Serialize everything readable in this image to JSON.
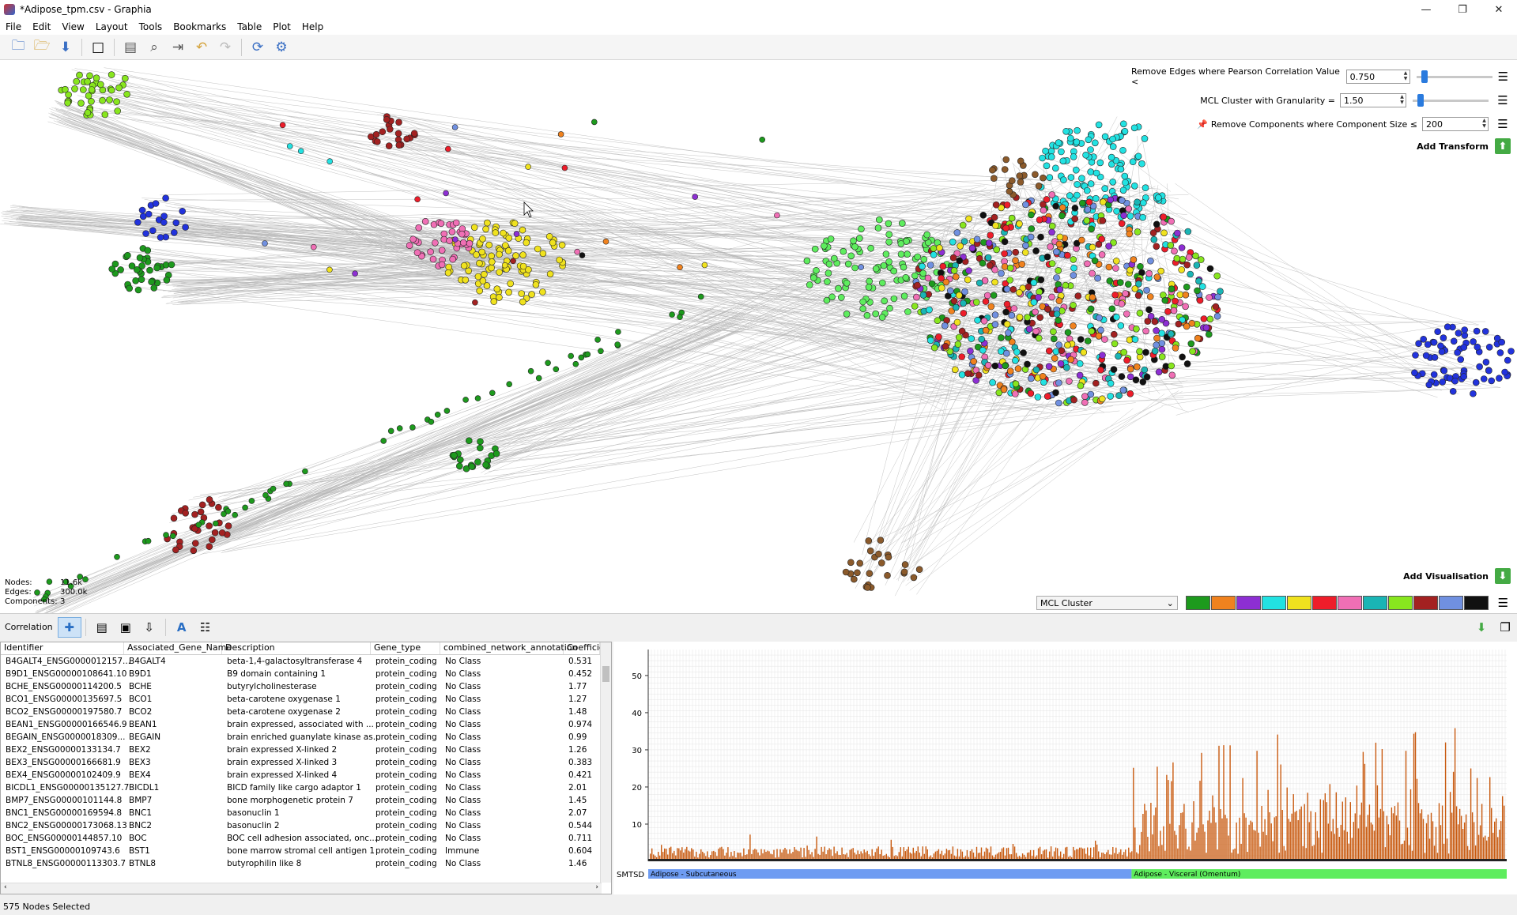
{
  "window": {
    "title": "*Adipose_tpm.csv - Graphia"
  },
  "menu": [
    "File",
    "Edit",
    "View",
    "Layout",
    "Tools",
    "Bookmarks",
    "Table",
    "Plot",
    "Help"
  ],
  "toolbar_icons": [
    "open-folder-icon",
    "open-file-icon",
    "save-icon",
    "stop-icon",
    "screenshot-icon",
    "find-icon",
    "export-icon",
    "undo-icon",
    "redo-icon",
    "refresh-layout-icon",
    "settings-icon"
  ],
  "transforms": [
    {
      "label": "Remove Edges where Pearson Correlation Value <",
      "value": "0.750"
    },
    {
      "label": "MCL Cluster with Granularity =",
      "value": "1.50"
    },
    {
      "label": "Remove Components where Component Size ≤",
      "value": "200"
    }
  ],
  "add_transform_label": "Add Transform",
  "add_visualisation_label": "Add Visualisation",
  "stats": {
    "nodes_label": "Nodes:",
    "nodes_value": "11.6k",
    "edges_label": "Edges:",
    "edges_value": "300.0k",
    "components_label": "Components:",
    "components_value": "3"
  },
  "visualisation": {
    "attribute": "MCL Cluster",
    "colors": [
      "#1d9a1d",
      "#f0821e",
      "#8d2fd3",
      "#22e2e2",
      "#f0e21e",
      "#ee1d2a",
      "#f06fb5",
      "#1ab5b5",
      "#88e61e",
      "#a32121",
      "#7090e0",
      "#111111"
    ]
  },
  "lower_panel": {
    "tab": "Correlation"
  },
  "table": {
    "columns": [
      "Identifier",
      "Associated_Gene_Name",
      "Description",
      "Gene_type",
      "combined_network_annotation",
      "Coefficie"
    ],
    "rows": [
      [
        "B4GALT4_ENSG0000012157...",
        "B4GALT4",
        "beta-1,4-galactosyltransferase 4",
        "protein_coding",
        "No Class",
        "0.531"
      ],
      [
        "B9D1_ENSG00000108641.10",
        "B9D1",
        "B9 domain containing 1",
        "protein_coding",
        "No Class",
        "0.452"
      ],
      [
        "BCHE_ENSG00000114200.5",
        "BCHE",
        "butyrylcholinesterase",
        "protein_coding",
        "No Class",
        "1.77"
      ],
      [
        "BCO1_ENSG00000135697.5",
        "BCO1",
        "beta-carotene oxygenase 1",
        "protein_coding",
        "No Class",
        "1.27"
      ],
      [
        "BCO2_ENSG00000197580.7",
        "BCO2",
        "beta-carotene oxygenase 2",
        "protein_coding",
        "No Class",
        "1.48"
      ],
      [
        "BEAN1_ENSG00000166546.9",
        "BEAN1",
        "brain expressed, associated with ...",
        "protein_coding",
        "No Class",
        "0.974"
      ],
      [
        "BEGAIN_ENSG0000018309...",
        "BEGAIN",
        "brain enriched guanylate kinase as...",
        "protein_coding",
        "No Class",
        "0.99"
      ],
      [
        "BEX2_ENSG00000133134.7",
        "BEX2",
        "brain expressed X-linked 2",
        "protein_coding",
        "No Class",
        "1.26"
      ],
      [
        "BEX3_ENSG00000166681.9",
        "BEX3",
        "brain expressed X-linked 3",
        "protein_coding",
        "No Class",
        "0.383"
      ],
      [
        "BEX4_ENSG00000102409.9",
        "BEX4",
        "brain expressed X-linked 4",
        "protein_coding",
        "No Class",
        "0.421"
      ],
      [
        "BICDL1_ENSG00000135127.7",
        "BICDL1",
        "BICD family like cargo adaptor 1",
        "protein_coding",
        "No Class",
        "2.01"
      ],
      [
        "BMP7_ENSG00000101144.8",
        "BMP7",
        "bone morphogenetic protein 7",
        "protein_coding",
        "No Class",
        "1.45"
      ],
      [
        "BNC1_ENSG00000169594.8",
        "BNC1",
        "basonuclin 1",
        "protein_coding",
        "No Class",
        "2.07"
      ],
      [
        "BNC2_ENSG00000173068.13",
        "BNC2",
        "basonuclin 2",
        "protein_coding",
        "No Class",
        "0.544"
      ],
      [
        "BOC_ENSG00000144857.10",
        "BOC",
        "BOC cell adhesion associated, onc...",
        "protein_coding",
        "No Class",
        "0.711"
      ],
      [
        "BST1_ENSG00000109743.6",
        "BST1",
        "bone marrow stromal cell antigen 1",
        "protein_coding",
        "Immune",
        "0.604"
      ],
      [
        "BTNL8_ENSG00000113303.7",
        "BTNL8",
        "butyrophilin like 8",
        "protein_coding",
        "No Class",
        "1.46"
      ]
    ]
  },
  "plot": {
    "yticks": [
      "10",
      "20",
      "30",
      "40",
      "50"
    ],
    "legend_label": "SMTSD",
    "groups": [
      {
        "name": "Adipose - Subcutaneous",
        "color": "#6e9cf2"
      },
      {
        "name": "Adipose - Visceral (Omentum)",
        "color": "#5eed5e"
      }
    ],
    "bar_color": "#c8590e"
  },
  "status": "575 Nodes Selected"
}
